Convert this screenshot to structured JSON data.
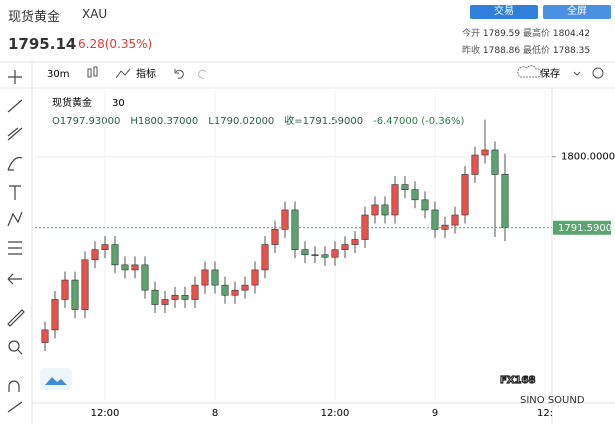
{
  "header": {
    "name": "现货黄金",
    "symbol": "XAU",
    "price": "1795.14",
    "change": "6.28(0.35%)",
    "buttons": [
      "交易",
      "全屏"
    ],
    "quotes": [
      [
        "今开",
        "1789.59",
        "最高价",
        "1804.42"
      ],
      [
        "昨收",
        "1788.86",
        "最低价",
        "1788.35"
      ]
    ]
  },
  "toolbar": {
    "interval": "30m",
    "indicators": "指标",
    "save": "保存"
  },
  "chart_data": {
    "type": "candlestick",
    "title": "现货黄金",
    "interval": "30",
    "legend": [
      "O1797.93000",
      "H1800.37000",
      "L1790.02000",
      "收=1791.59000",
      "-6.47000 (-0.36%)"
    ],
    "categories": [
      null,
      null,
      null,
      null,
      null,
      null,
      "12:00",
      null,
      null,
      null,
      null,
      null,
      null,
      null,
      null,
      null,
      null,
      "8",
      null,
      null,
      null,
      null,
      null,
      null,
      null,
      null,
      null,
      null,
      null,
      "12:00",
      null,
      null,
      null,
      null,
      null,
      null,
      null,
      null,
      null,
      "9",
      null,
      null,
      null,
      null,
      null,
      null,
      null,
      null,
      null,
      null,
      "12:"
    ],
    "open": [
      1778.0,
      1779.5,
      1783.1,
      1785.4,
      1781.9,
      1787.8,
      1789.0,
      1789.6,
      1787.2,
      1786.6,
      1787.2,
      1784.2,
      1782.5,
      1783.1,
      1783.6,
      1783.1,
      1784.8,
      1786.6,
      1784.8,
      1783.6,
      1784.2,
      1784.8,
      1786.6,
      1789.6,
      1791.4,
      1793.7,
      1789.0,
      1788.4,
      1788.4,
      1788.1,
      1789.0,
      1789.6,
      1790.2,
      1793.1,
      1794.3,
      1793.1,
      1796.7,
      1796.1,
      1794.9,
      1793.7,
      1791.4,
      1791.9,
      1793.1,
      1797.9,
      1800.2,
      1800.8,
      1797.93,
      null,
      null,
      null,
      null
    ],
    "high": [
      1780.5,
      1784.1,
      1786.4,
      1786.4,
      1788.8,
      1790.0,
      1790.6,
      1790.6,
      1788.2,
      1788.2,
      1788.2,
      1785.2,
      1784.1,
      1784.6,
      1784.6,
      1785.8,
      1787.6,
      1787.6,
      1785.8,
      1785.2,
      1785.8,
      1787.6,
      1790.6,
      1792.4,
      1794.7,
      1794.7,
      1790.0,
      1789.4,
      1789.4,
      1790.0,
      1790.6,
      1791.2,
      1794.1,
      1795.3,
      1795.3,
      1797.7,
      1797.7,
      1797.1,
      1795.9,
      1794.7,
      1792.9,
      1794.1,
      1798.9,
      1801.2,
      1804.4,
      1801.8,
      1800.37,
      null,
      null,
      null,
      null
    ],
    "low": [
      1777.0,
      1778.5,
      1782.1,
      1780.9,
      1780.9,
      1786.8,
      1788.0,
      1786.2,
      1785.6,
      1785.6,
      1783.2,
      1781.5,
      1781.5,
      1782.1,
      1782.1,
      1782.1,
      1783.8,
      1783.8,
      1782.6,
      1782.6,
      1783.2,
      1783.8,
      1785.6,
      1788.6,
      1790.4,
      1788.0,
      1787.4,
      1787.4,
      1787.1,
      1787.1,
      1788.0,
      1788.6,
      1789.2,
      1792.1,
      1792.1,
      1792.1,
      1795.1,
      1793.9,
      1792.7,
      1790.4,
      1790.4,
      1790.9,
      1792.1,
      1796.9,
      1799.2,
      1790.5,
      1790.02,
      null,
      null,
      null,
      null
    ],
    "close": [
      1779.5,
      1783.1,
      1785.4,
      1781.9,
      1787.8,
      1789.0,
      1789.6,
      1787.2,
      1786.6,
      1787.2,
      1784.2,
      1782.5,
      1783.1,
      1783.6,
      1783.1,
      1784.8,
      1786.6,
      1784.8,
      1783.6,
      1784.2,
      1784.8,
      1786.6,
      1789.6,
      1791.4,
      1793.7,
      1789.0,
      1788.4,
      1788.4,
      1788.1,
      1789.0,
      1789.6,
      1790.2,
      1793.1,
      1794.3,
      1793.1,
      1796.7,
      1796.1,
      1794.9,
      1793.7,
      1791.4,
      1791.9,
      1793.1,
      1797.9,
      1800.2,
      1800.8,
      1797.9,
      1791.59,
      null,
      null,
      null,
      null
    ],
    "up_color": "#e9524a",
    "down_color": "#5aa46e",
    "ylim": [
      1771.2,
      1807.9
    ],
    "yticks": [
      {
        "value": 1800,
        "label": "1800.00000"
      }
    ],
    "last_price": {
      "value": 1791.59,
      "label": "1791.59000"
    },
    "grid": true
  },
  "watermark": {
    "brand": "FX168",
    "sub": "SINO SOUND"
  }
}
